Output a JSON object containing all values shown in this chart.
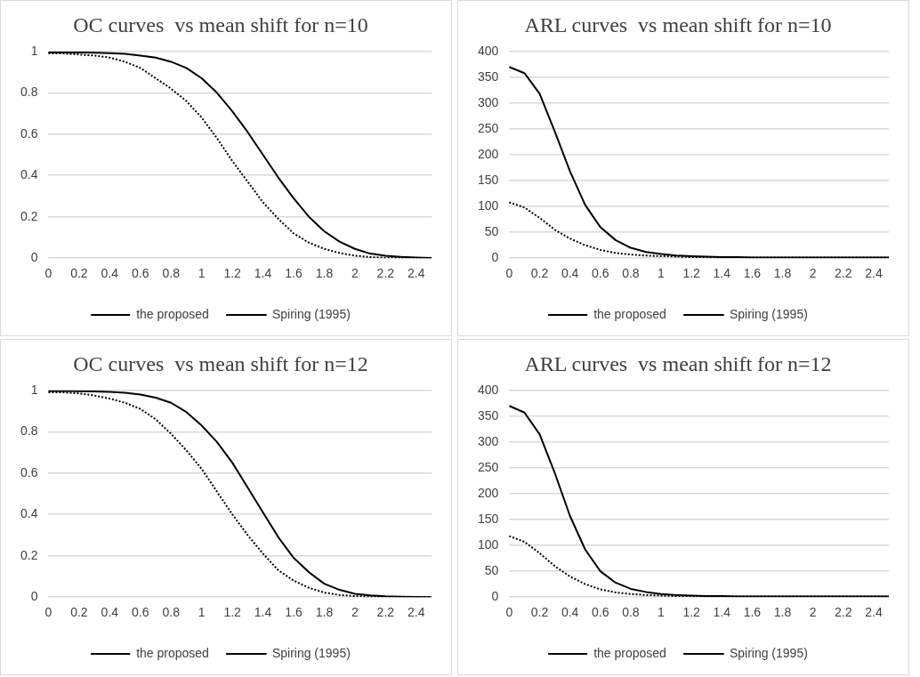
{
  "chart_data": [
    {
      "type": "line",
      "title": "OC curves  vs mean shift for n=10",
      "categories": [
        "0",
        null,
        "0.2",
        null,
        "0.4",
        null,
        "0.6",
        null,
        "0.8",
        null,
        "1",
        null,
        "1.2",
        null,
        "1.4",
        null,
        "1.6",
        null,
        "1.8",
        null,
        "2",
        null,
        "2.2",
        null,
        "2.4",
        null
      ],
      "ylim": [
        0,
        1
      ],
      "yticks": [
        0,
        0.2,
        0.4,
        0.6,
        0.8,
        1
      ],
      "grid": "y",
      "legend": "bottom",
      "marker": "none",
      "series": [
        {
          "name": "the proposed",
          "color": "#000000",
          "line_style": "dotted",
          "values": [
            0.99,
            0.99,
            0.985,
            0.98,
            0.97,
            0.95,
            0.92,
            0.87,
            0.82,
            0.76,
            0.68,
            0.58,
            0.47,
            0.37,
            0.27,
            0.19,
            0.12,
            0.075,
            0.045,
            0.025,
            0.012,
            0.005,
            0.002,
            0.001,
            0,
            0
          ]
        },
        {
          "name": "Spiring (1995)",
          "color": "#000000",
          "line_style": "solid",
          "values": [
            0.995,
            0.995,
            0.995,
            0.994,
            0.992,
            0.988,
            0.98,
            0.97,
            0.95,
            0.92,
            0.87,
            0.8,
            0.71,
            0.61,
            0.5,
            0.39,
            0.29,
            0.2,
            0.13,
            0.08,
            0.045,
            0.022,
            0.012,
            0.006,
            0.003,
            0.001
          ]
        }
      ]
    },
    {
      "type": "line",
      "title": "ARL curves  vs mean shift for n=10",
      "categories": [
        "0",
        null,
        "0.2",
        null,
        "0.4",
        null,
        "0.6",
        null,
        "0.8",
        null,
        "1",
        null,
        "1.2",
        null,
        "1.4",
        null,
        "1.6",
        null,
        "1.8",
        null,
        "2",
        null,
        "2.2",
        null,
        "2.4",
        null
      ],
      "ylim": [
        0,
        400
      ],
      "yticks": [
        0,
        50,
        100,
        150,
        200,
        250,
        300,
        350,
        400
      ],
      "grid": "y",
      "legend": "bottom",
      "marker": "none",
      "series": [
        {
          "name": "the proposed",
          "color": "#000000",
          "line_style": "dotted",
          "values": [
            108,
            98,
            78,
            55,
            38,
            25,
            16,
            10,
            7,
            5,
            4,
            3,
            2,
            2,
            1,
            1,
            1,
            1,
            1,
            1,
            1,
            1,
            1,
            1,
            1,
            1
          ]
        },
        {
          "name": "Spiring (1995)",
          "color": "#000000",
          "line_style": "solid",
          "values": [
            370,
            358,
            318,
            245,
            168,
            103,
            60,
            35,
            20,
            12,
            8,
            5,
            4,
            3,
            2,
            2,
            1,
            1,
            1,
            1,
            1,
            1,
            1,
            1,
            1,
            1
          ]
        }
      ]
    },
    {
      "type": "line",
      "title": "OC curves  vs mean shift for n=12",
      "categories": [
        "0",
        null,
        "0.2",
        null,
        "0.4",
        null,
        "0.6",
        null,
        "0.8",
        null,
        "1",
        null,
        "1.2",
        null,
        "1.4",
        null,
        "1.6",
        null,
        "1.8",
        null,
        "2",
        null,
        "2.2",
        null,
        "2.4",
        null
      ],
      "ylim": [
        0,
        1
      ],
      "yticks": [
        0,
        0.2,
        0.4,
        0.6,
        0.8,
        1
      ],
      "grid": "y",
      "legend": "bottom",
      "marker": "none",
      "series": [
        {
          "name": "the proposed",
          "color": "#000000",
          "line_style": "dotted",
          "values": [
            0.99,
            0.99,
            0.985,
            0.975,
            0.96,
            0.94,
            0.91,
            0.86,
            0.79,
            0.71,
            0.62,
            0.51,
            0.4,
            0.3,
            0.21,
            0.13,
            0.08,
            0.045,
            0.022,
            0.01,
            0.005,
            0.002,
            0.001,
            0,
            0,
            0
          ]
        },
        {
          "name": "Spiring (1995)",
          "color": "#000000",
          "line_style": "solid",
          "values": [
            0.997,
            0.997,
            0.996,
            0.995,
            0.993,
            0.988,
            0.98,
            0.965,
            0.94,
            0.895,
            0.83,
            0.75,
            0.65,
            0.53,
            0.41,
            0.29,
            0.19,
            0.12,
            0.065,
            0.035,
            0.016,
            0.008,
            0.004,
            0.002,
            0.001,
            0
          ]
        }
      ]
    },
    {
      "type": "line",
      "title": "ARL curves  vs mean shift for n=12",
      "categories": [
        "0",
        null,
        "0.2",
        null,
        "0.4",
        null,
        "0.6",
        null,
        "0.8",
        null,
        "1",
        null,
        "1.2",
        null,
        "1.4",
        null,
        "1.6",
        null,
        "1.8",
        null,
        "2",
        null,
        "2.2",
        null,
        "2.4",
        null
      ],
      "ylim": [
        0,
        400
      ],
      "yticks": [
        0,
        50,
        100,
        150,
        200,
        250,
        300,
        350,
        400
      ],
      "grid": "y",
      "legend": "bottom",
      "marker": "none",
      "series": [
        {
          "name": "the proposed",
          "color": "#000000",
          "line_style": "dotted",
          "values": [
            118,
            107,
            85,
            60,
            40,
            25,
            15,
            9,
            6,
            4,
            3,
            2,
            2,
            1,
            1,
            1,
            1,
            1,
            1,
            1,
            1,
            1,
            1,
            1,
            1,
            1
          ]
        },
        {
          "name": "Spiring (1995)",
          "color": "#000000",
          "line_style": "solid",
          "values": [
            370,
            357,
            315,
            240,
            157,
            92,
            50,
            28,
            16,
            10,
            6,
            4,
            3,
            2,
            2,
            1,
            1,
            1,
            1,
            1,
            1,
            1,
            1,
            1,
            1,
            1
          ]
        }
      ]
    }
  ]
}
